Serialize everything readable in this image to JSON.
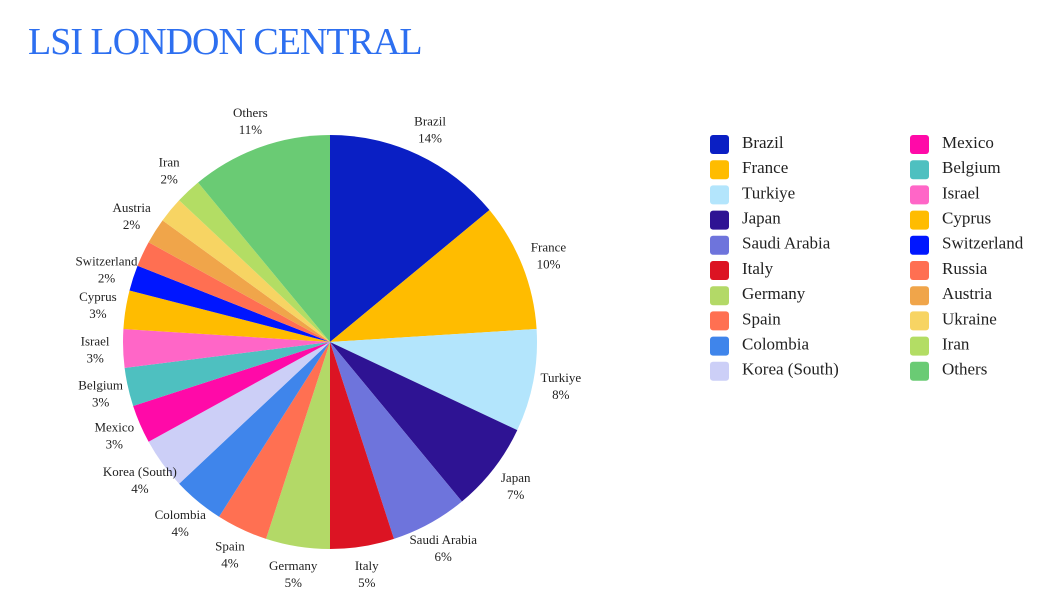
{
  "chart_data": {
    "type": "pie",
    "title": "LSI LONDON CENTRAL",
    "categories": [
      "Brazil",
      "France",
      "Turkiye",
      "Japan",
      "Saudi Arabia",
      "Italy",
      "Germany",
      "Spain",
      "Colombia",
      "Korea (South)",
      "Mexico",
      "Belgium",
      "Israel",
      "Cyprus",
      "Switzerland",
      "Russia",
      "Austria",
      "Ukraine",
      "Iran",
      "Others"
    ],
    "values": [
      14,
      10,
      8,
      7,
      6,
      5,
      5,
      4,
      4,
      4,
      3,
      3,
      3,
      3,
      2,
      2,
      2,
      2,
      2,
      11
    ],
    "value_labels": [
      "14%",
      "10%",
      "8%",
      "7%",
      "6%",
      "5%",
      "5%",
      "4%",
      "4%",
      "4%",
      "3%",
      "3%",
      "3%",
      "3%",
      "2%",
      null,
      "2%",
      null,
      "2%",
      "11%"
    ],
    "colors": [
      "#0a1fc4",
      "#ffbc00",
      "#b3e5fc",
      "#2e1393",
      "#6e74dc",
      "#dc1423",
      "#b3d967",
      "#ff7052",
      "#3f85eb",
      "#cccff7",
      "#ff0aa8",
      "#4ec0c0",
      "#ff66c7",
      "#ffbc00",
      "#0016ff",
      "#ff6f52",
      "#f0a54a",
      "#f7d463",
      "#b3dd64",
      "#6acb74"
    ],
    "legend": "right"
  }
}
